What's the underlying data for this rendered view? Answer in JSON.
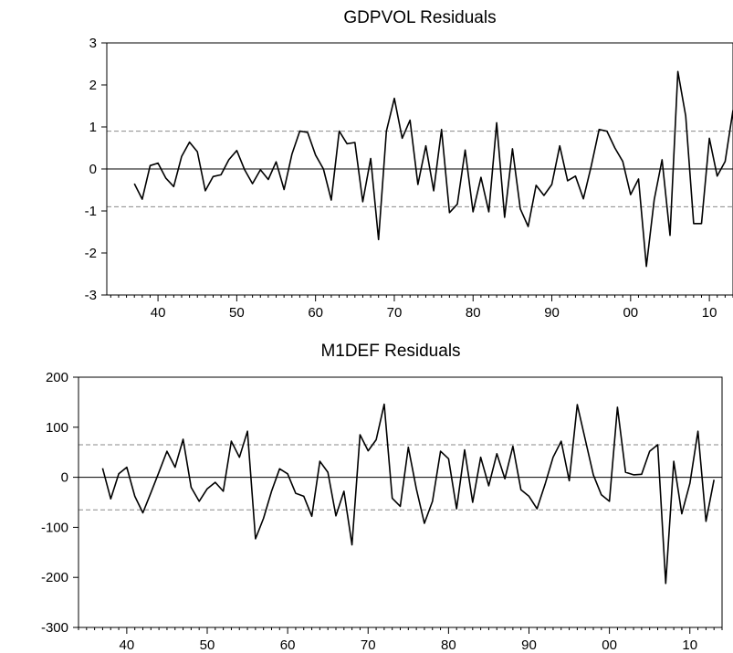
{
  "chart_data": [
    {
      "type": "line",
      "title": "GDPVOL Residuals",
      "x_start": 1937,
      "x_end": 2013,
      "ylim": [
        -3,
        3
      ],
      "yticks": [
        -3,
        -2,
        -1,
        0,
        1,
        2,
        3
      ],
      "ytick_labels": [
        "-3",
        "-2",
        "-1",
        "0",
        "1",
        "2",
        "3"
      ],
      "xticks": [
        1940,
        1950,
        1960,
        1970,
        1980,
        1990,
        2000,
        2010
      ],
      "xtick_labels": [
        "40",
        "50",
        "60",
        "70",
        "80",
        "90",
        "00",
        "10"
      ],
      "xlim": [
        1933.5,
        2013
      ],
      "band": 0.9,
      "series": [
        {
          "values": [
            -0.35,
            -0.72,
            0.08,
            0.14,
            -0.22,
            -0.42,
            0.3,
            0.64,
            0.41,
            -0.52,
            -0.18,
            -0.14,
            0.22,
            0.44,
            -0.02,
            -0.35,
            -0.02,
            -0.25,
            0.17,
            -0.49,
            0.35,
            0.9,
            0.87,
            0.33,
            0.0,
            -0.74,
            0.9,
            0.6,
            0.63,
            -0.78,
            0.25,
            -1.68,
            0.9,
            1.68,
            0.73,
            1.16,
            -0.37,
            0.55,
            -0.52,
            0.94,
            -1.04,
            -0.84,
            0.45,
            -1.02,
            -0.2,
            -1.02,
            1.1,
            -1.15,
            0.48,
            -0.95,
            -1.37,
            -0.39,
            -0.63,
            -0.37,
            0.55,
            -0.28,
            -0.17,
            -0.71,
            0.07,
            0.94,
            0.9,
            0.5,
            0.18,
            -0.61,
            -0.24,
            -2.32,
            -0.73,
            0.22,
            -1.58,
            2.32,
            1.26,
            -1.3,
            -1.3,
            0.73,
            -0.17,
            0.18,
            1.4
          ]
        }
      ]
    },
    {
      "type": "line",
      "title": "M1DEF Residuals",
      "x_start": 1937,
      "x_end": 2013,
      "ylim": [
        -300,
        200
      ],
      "yticks": [
        -300,
        -200,
        -100,
        0,
        100,
        200
      ],
      "ytick_labels": [
        "-300",
        "-200",
        "-100",
        "0",
        "100",
        "200"
      ],
      "xticks": [
        1940,
        1950,
        1960,
        1970,
        1980,
        1990,
        2000,
        2010
      ],
      "xtick_labels": [
        "40",
        "50",
        "60",
        "70",
        "80",
        "90",
        "00",
        "10"
      ],
      "xlim": [
        1934,
        2014
      ],
      "band": 65,
      "series": [
        {
          "values": [
            18,
            -43,
            7,
            20,
            -38,
            -71,
            -31,
            10,
            52,
            20,
            76,
            -20,
            -48,
            -23,
            -10,
            -28,
            72,
            40,
            92,
            -123,
            -82,
            -28,
            17,
            7,
            -32,
            -38,
            -78,
            32,
            10,
            -77,
            -28,
            -135,
            85,
            53,
            75,
            146,
            -42,
            -58,
            60,
            -23,
            -92,
            -48,
            52,
            37,
            -63,
            55,
            -50,
            40,
            -17,
            47,
            -3,
            62,
            -25,
            -38,
            -63,
            -14,
            40,
            72,
            -7,
            145,
            75,
            5,
            -35,
            -48,
            140,
            10,
            5,
            6,
            52,
            65,
            -212,
            32,
            -73,
            -12,
            92,
            -88,
            -5
          ]
        }
      ]
    }
  ]
}
